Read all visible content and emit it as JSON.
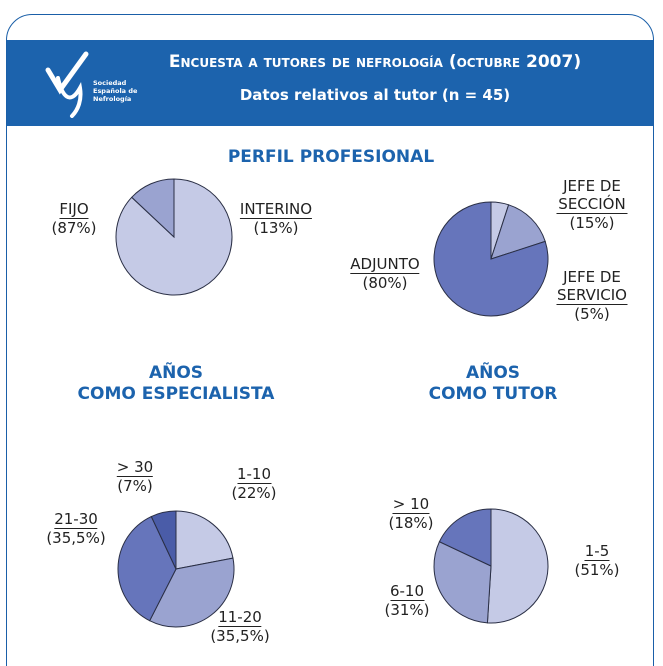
{
  "header": {
    "title": "Encuesta a tutores de nefrología (octubre 2007)",
    "subtitle": "Datos relativos al tutor (n = 45)",
    "logo_text": "Sociedad Española de Nefrología"
  },
  "section_title": "PERFIL PROFESIONAL",
  "chart_data": [
    {
      "type": "pie",
      "categories": [
        "FIJO",
        "INTERINO"
      ],
      "values": [
        87,
        13
      ],
      "value_labels": [
        "(87%)",
        "(13%)"
      ],
      "colors": [
        "#c5cae6",
        "#9aa3d0"
      ]
    },
    {
      "type": "pie",
      "categories": [
        "JEFE DE SERVICIO",
        "JEFE DE SECCIÓN",
        "ADJUNTO"
      ],
      "values": [
        5,
        15,
        80
      ],
      "value_labels": [
        "(5%)",
        "(15%)",
        "(80%)"
      ],
      "colors": [
        "#c5cae6",
        "#9aa3d0",
        "#6675bb"
      ]
    },
    {
      "type": "pie",
      "title": "AÑOS\nCOMO ESPECIALISTA",
      "categories": [
        "1-10",
        "11-20",
        "21-30",
        "> 30"
      ],
      "values": [
        22,
        35.5,
        35.5,
        7
      ],
      "value_labels": [
        "(22%)",
        "(35,5%)",
        "(35,5%)",
        "(7%)"
      ],
      "colors": [
        "#c5cae6",
        "#9aa3d0",
        "#6675bb",
        "#4a5ca8"
      ]
    },
    {
      "type": "pie",
      "title": "AÑOS\nCOMO TUTOR",
      "categories": [
        "1-5",
        "6-10",
        "> 10"
      ],
      "values": [
        51,
        31,
        18
      ],
      "value_labels": [
        "(51%)",
        "(31%)",
        "(18%)"
      ],
      "colors": [
        "#c5cae6",
        "#9aa3d0",
        "#6675bb"
      ]
    }
  ]
}
